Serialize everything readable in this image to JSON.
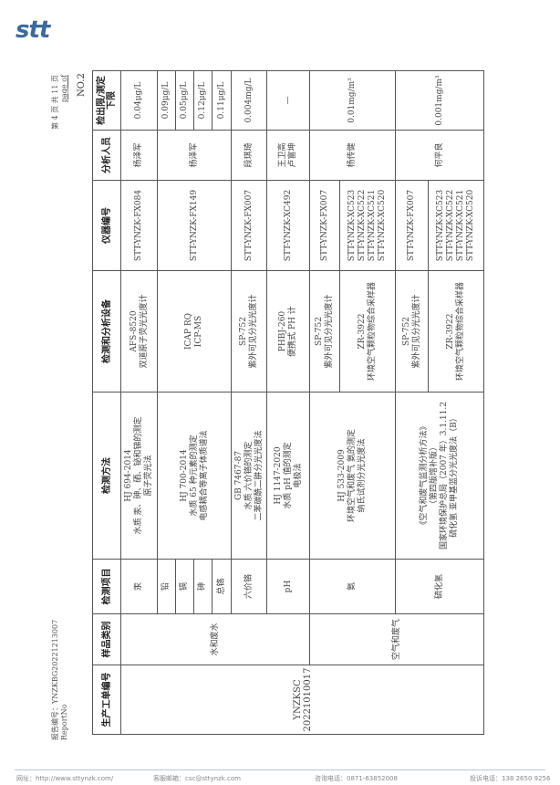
{
  "logo": "stt",
  "report_no": {
    "label": "报告编号：YNZKBG20221213007",
    "label_en": "ReportNo"
  },
  "page": {
    "text": "第 4 页 共 11 页",
    "text_en": "page      of"
  },
  "form_no": "NO.2",
  "table": {
    "headers": [
      "生产工单编号",
      "样品类别",
      "检测项目",
      "检测方法",
      "检测和分析设备",
      "仪器编号",
      "分析人员",
      "检出限/测定下限"
    ],
    "work_order": "YNZKSC\n20221010017",
    "sample_water": "水和废水",
    "sample_air": "空气和废气",
    "rows": {
      "hg": {
        "item": "汞",
        "method": "HJ 694-2014\n水质 汞、砷、硒、铋和锑的测定\n原子荧光法",
        "equipment": "AFS-8520\n双道原子荧光光度计",
        "instrument": "STT-YNZK-FX084",
        "analyst": "杨泽军",
        "limit": "0.04μg/L"
      },
      "icp": {
        "method": "HJ 700-2014\n水质 65 种元素的测定\n电感耦合等离子体质谱法",
        "equipment": "ICAP RQ\nICP-MS",
        "instrument": "STT-YNZK-FX149",
        "analyst": "杨泽军",
        "items": [
          {
            "item": "铅",
            "limit": "0.09μg/L"
          },
          {
            "item": "镉",
            "limit": "0.05μg/L"
          },
          {
            "item": "砷",
            "limit": "0.12μg/L"
          },
          {
            "item": "总铬",
            "limit": "0.11μg/L"
          }
        ]
      },
      "cr6": {
        "item": "六价铬",
        "method": "GB 7467-87\n水质 六价铬的测定\n二苯碳酰二肼分光光度法",
        "equipment": "SP-752\n紫外可见分光光度计",
        "instrument": "STT-YNZK-FX007",
        "analyst": "段琪琦",
        "limit": "0.004mg/L"
      },
      "ph": {
        "item": "pH",
        "method": "HJ 1147-2020\n水质 pH 值的测定\n电极法",
        "equipment": "PHBJ-260\n便携式 PH 计",
        "instrument": "STT-YNZK-XC492",
        "analyst": "王卫高\n卢富坤",
        "limit": "—"
      },
      "nh3": {
        "item": "氨",
        "method": "HJ 533-2009\n环境空气和废气 氨的测定\n纳氏试剂分光光度法",
        "equipment_1": "SP-752\n紫外可见分光光度计",
        "instrument_1": "STT-YNZK-FX007",
        "equipment_2": "ZR-3922\n环境空气颗粒物综合采样器",
        "instrument_2": "STT-YNZK-XC523\nSTT-YNZK-XC522\nSTT-YNZK-XC521\nSTT-YNZK-XC520",
        "analyst": "杨传健",
        "limit": "0.01mg/m³"
      },
      "h2s": {
        "item": "硫化氢",
        "method": "《空气和废气监测分析方法》\n（第四版增补版）\n国家环境保护总局（2007 年）3.1.11.2\n硫化氢 亚甲基蓝分光光度法（B）",
        "equipment_1": "SP-752\n紫外可见分光光度计",
        "instrument_1": "STT-YNZK-FX007",
        "equipment_2": "ZR-3922\n环境空气颗粒物综合采样器",
        "instrument_2": "STT-YNZK-XC523\nSTT-YNZK-XC522\nSTT-YNZK-XC521\nSTT-YNZK-XC520",
        "analyst": "何平良",
        "limit": "0.001mg/m³"
      }
    }
  },
  "footer": {
    "website": "网址：http://www.sttynzk.com/",
    "email": "客服邮箱：csc@sttynzk.com",
    "consult_phone": "咨询电话：0871-63852008",
    "complaint_phone": "投诉电话：138 2650 9256"
  },
  "colors": {
    "brand": "#3a6aa0",
    "border": "#555555"
  }
}
